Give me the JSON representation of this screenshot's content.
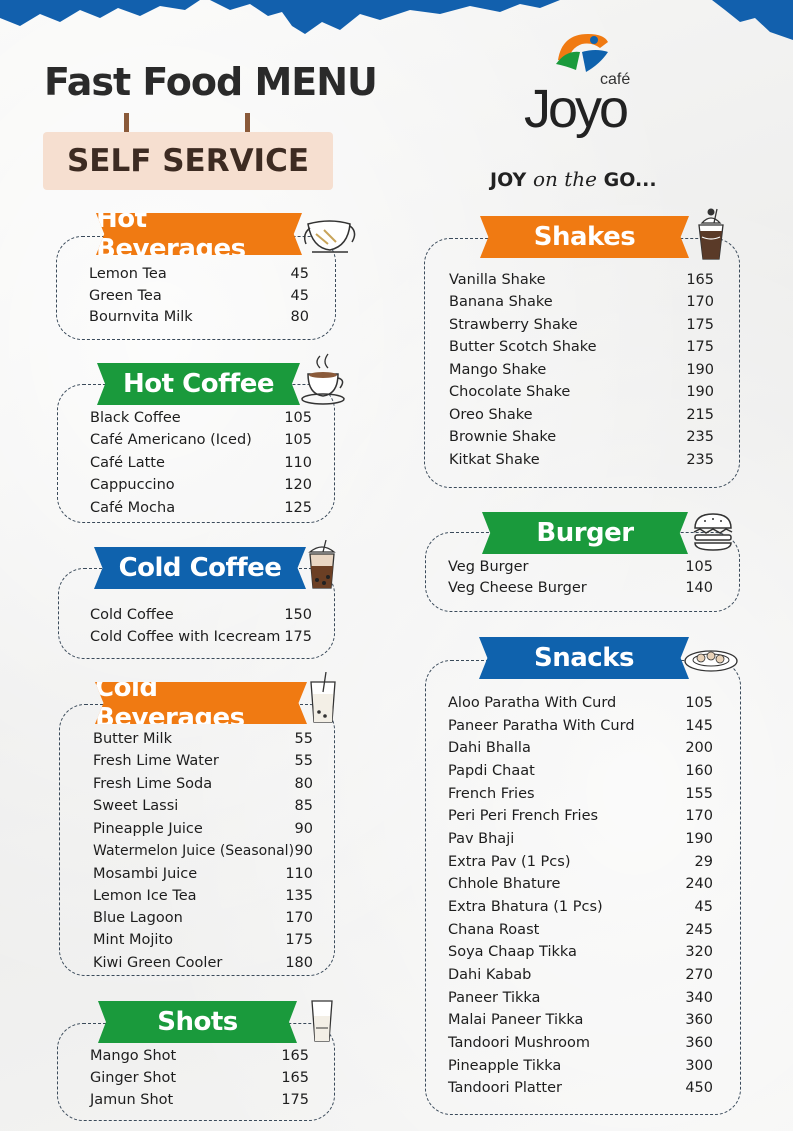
{
  "header": {
    "title": "Fast Food MENU",
    "subtitle": "SELF SERVICE"
  },
  "brand": {
    "cafe": "café",
    "name": "Joyo",
    "tagline_bold_1": "JOY",
    "tagline_script": "on the",
    "tagline_bold_2": "GO..."
  },
  "colors": {
    "orange": "#f07a12",
    "green": "#1a9a3c",
    "blue": "#0f62ad"
  },
  "sections": {
    "hot_beverages": {
      "title": "Hot Beverages",
      "icon": "teapot-icon",
      "items": [
        {
          "name": "Lemon Tea",
          "price": "45"
        },
        {
          "name": "Green Tea",
          "price": "45"
        },
        {
          "name": "Bournvita Milk",
          "price": "80"
        }
      ]
    },
    "hot_coffee": {
      "title": "Hot Coffee",
      "icon": "coffee-cup-icon",
      "items": [
        {
          "name": "Black Coffee",
          "price": "105"
        },
        {
          "name": "Café Americano (Iced)",
          "price": "105"
        },
        {
          "name": "Café Latte",
          "price": "110"
        },
        {
          "name": "Cappuccino",
          "price": "120"
        },
        {
          "name": "Café Mocha",
          "price": "125"
        }
      ]
    },
    "cold_coffee": {
      "title": "Cold Coffee",
      "icon": "iced-coffee-icon",
      "items": [
        {
          "name": "Cold Coffee",
          "price": "150"
        },
        {
          "name": "Cold Coffee with Icecream",
          "price": "175"
        }
      ]
    },
    "cold_beverages": {
      "title": "Cold Beverages",
      "icon": "cold-drink-icon",
      "items": [
        {
          "name": "Butter Milk",
          "price": "55"
        },
        {
          "name": "Fresh Lime Water",
          "price": "55"
        },
        {
          "name": "Fresh Lime Soda",
          "price": "80"
        },
        {
          "name": "Sweet Lassi",
          "price": "85"
        },
        {
          "name": "Pineapple Juice",
          "price": "90"
        },
        {
          "name": "Watermelon Juice (Seasonal)",
          "price": "90"
        },
        {
          "name": "Mosambi Juice",
          "price": "110"
        },
        {
          "name": "Lemon Ice Tea",
          "price": "135"
        },
        {
          "name": "Blue Lagoon",
          "price": "170"
        },
        {
          "name": "Mint Mojito",
          "price": "175"
        },
        {
          "name": "Kiwi Green Cooler",
          "price": "180"
        }
      ]
    },
    "shots": {
      "title": "Shots",
      "icon": "shot-glass-icon",
      "items": [
        {
          "name": "Mango Shot",
          "price": "165"
        },
        {
          "name": "Ginger Shot",
          "price": "165"
        },
        {
          "name": "Jamun Shot",
          "price": "175"
        }
      ]
    },
    "shakes": {
      "title": "Shakes",
      "icon": "milkshake-icon",
      "items": [
        {
          "name": "Vanilla Shake",
          "price": "165"
        },
        {
          "name": "Banana Shake",
          "price": "170"
        },
        {
          "name": "Strawberry Shake",
          "price": "175"
        },
        {
          "name": "Butter Scotch Shake",
          "price": "175"
        },
        {
          "name": "Mango Shake",
          "price": "190"
        },
        {
          "name": "Chocolate Shake",
          "price": "190"
        },
        {
          "name": "Oreo Shake",
          "price": "215"
        },
        {
          "name": "Brownie Shake",
          "price": "235"
        },
        {
          "name": "Kitkat Shake",
          "price": "235"
        }
      ]
    },
    "burger": {
      "title": "Burger",
      "icon": "burger-icon",
      "items": [
        {
          "name": "Veg Burger",
          "price": "105"
        },
        {
          "name": "Veg Cheese Burger",
          "price": "140"
        }
      ]
    },
    "snacks": {
      "title": "Snacks",
      "icon": "snack-plate-icon",
      "items": [
        {
          "name": "Aloo Paratha With Curd",
          "price": "105"
        },
        {
          "name": "Paneer Paratha With Curd",
          "price": "145"
        },
        {
          "name": "Dahi Bhalla",
          "price": "200"
        },
        {
          "name": "Papdi Chaat",
          "price": "160"
        },
        {
          "name": "French Fries",
          "price": "155"
        },
        {
          "name": "Peri Peri French Fries",
          "price": "170"
        },
        {
          "name": "Pav Bhaji",
          "price": "190"
        },
        {
          "name": "Extra Pav (1 Pcs)",
          "price": "29"
        },
        {
          "name": "Chhole Bhature",
          "price": "240"
        },
        {
          "name": "Extra Bhatura (1 Pcs)",
          "price": "45"
        },
        {
          "name": "Chana Roast",
          "price": "245"
        },
        {
          "name": "Soya Chaap Tikka",
          "price": "320"
        },
        {
          "name": "Dahi Kabab",
          "price": "270"
        },
        {
          "name": "Paneer Tikka",
          "price": "340"
        },
        {
          "name": "Malai Paneer Tikka",
          "price": "360"
        },
        {
          "name": "Tandoori Mushroom",
          "price": "360"
        },
        {
          "name": "Pineapple Tikka",
          "price": "300"
        },
        {
          "name": "Tandoori Platter",
          "price": "450"
        }
      ]
    }
  }
}
